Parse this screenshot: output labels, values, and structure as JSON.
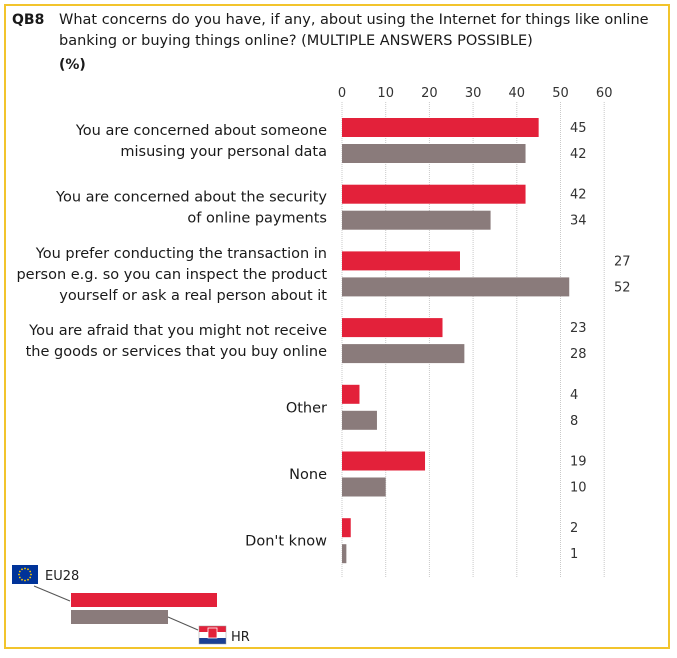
{
  "question": {
    "id": "QB8",
    "text": "What concerns do you have, if any, about using the Internet for things like online banking or buying things online? (MULTIPLE ANSWERS POSSIBLE)",
    "unit": "(%)"
  },
  "colors": {
    "EU28": "#e3213a",
    "HR": "#8a7b7b",
    "frame": "#f2c42c",
    "grid": "#c9c9c9"
  },
  "chart_data": {
    "type": "bar",
    "orientation": "horizontal",
    "xlim": [
      0,
      60
    ],
    "ticks": [
      0,
      10,
      20,
      30,
      40,
      50,
      60
    ],
    "grid": true,
    "categories": [
      [
        "You are concerned about someone",
        "misusing your personal data"
      ],
      [
        "You are concerned about the security",
        "of online payments"
      ],
      [
        "You prefer conducting the transaction in",
        "person e.g. so you can inspect the product",
        "yourself or ask a real person about it"
      ],
      [
        "You are afraid that you might not receive",
        "the goods or services that you buy online"
      ],
      [
        "Other"
      ],
      [
        "None"
      ],
      [
        "Don't know"
      ]
    ],
    "series": [
      {
        "name": "EU28",
        "color": "#e3213a",
        "values": [
          45,
          42,
          27,
          23,
          4,
          19,
          2
        ]
      },
      {
        "name": "HR",
        "color": "#8a7b7b",
        "values": [
          42,
          34,
          52,
          28,
          8,
          10,
          1
        ]
      }
    ],
    "legend": {
      "placement": "bottom-left",
      "icons": [
        "eu-flag-icon",
        "croatia-flag-icon"
      ]
    }
  }
}
